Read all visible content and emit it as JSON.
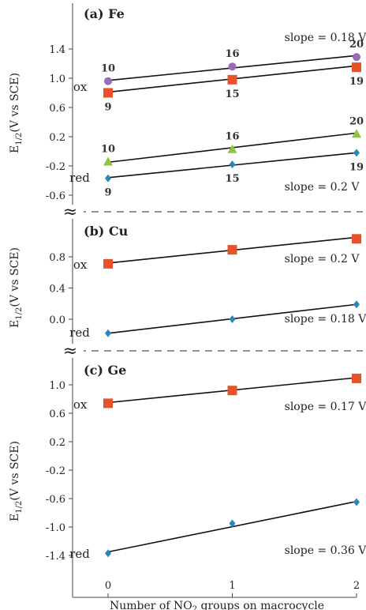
{
  "chart_data": {
    "type": "scatter",
    "xlabel_prefix": "Number of NO",
    "xlabel_sub": "2",
    "xlabel_suffix": " groups on macrocycle",
    "x_ticks": [
      "0",
      "1",
      "2"
    ],
    "xlim": [
      -0.45,
      2.2
    ],
    "colors": {
      "square": "#e8522a",
      "diamond": "#2e86b8",
      "circle": "#9b6bb4",
      "triangle": "#8cc63e",
      "fit": "#111111"
    },
    "panels": [
      {
        "label": "(a) Fe",
        "ylabel_prefix": "E",
        "ylabel_sub": "1/2",
        "ylabel_suffix": "(V vs SCE)",
        "ylim": [
          -0.8,
          1.6
        ],
        "y_ticks": [
          -0.6,
          -0.2,
          0.2,
          0.6,
          1.0,
          1.4
        ],
        "y_tick_labels": [
          "-0.6",
          "-0.2",
          "0.2",
          "0.6",
          "1.0",
          "1.4"
        ],
        "series": [
          {
            "marker": "circle",
            "x": [
              0,
              1,
              2
            ],
            "y": [
              0.96,
              1.16,
              1.29
            ],
            "fit": [
              0.97,
              1.31
            ],
            "labels": [
              "10",
              "16",
              "20"
            ],
            "label_pos": "above"
          },
          {
            "marker": "square",
            "x": [
              0,
              1,
              2
            ],
            "y": [
              0.8,
              0.98,
              1.15
            ],
            "fit": [
              0.81,
              1.17
            ],
            "labels": [
              "9",
              "15",
              "19"
            ],
            "label_pos": "below"
          },
          {
            "marker": "triangle",
            "x": [
              0,
              1,
              2
            ],
            "y": [
              -0.14,
              0.03,
              0.24
            ],
            "fit": [
              -0.15,
              0.25
            ],
            "labels": [
              "10",
              "16",
              "20"
            ],
            "label_pos": "above"
          },
          {
            "marker": "diamond",
            "x": [
              0,
              1,
              2
            ],
            "y": [
              -0.37,
              -0.18,
              -0.02
            ],
            "fit": [
              -0.36,
              -0.02
            ],
            "labels": [
              "9",
              "15",
              "19"
            ],
            "label_pos": "below"
          }
        ],
        "annotations": [
          {
            "text": "slope = 0.18 V",
            "x": 1.42,
            "y": 1.56
          },
          {
            "text": "slope = 0.2 V",
            "x": 1.42,
            "y": -0.48
          },
          {
            "text": "ox",
            "x": -0.28,
            "y": 0.88
          },
          {
            "text": "red",
            "x": -0.31,
            "y": -0.36
          }
        ]
      },
      {
        "label": "(b) Cu",
        "ylabel_prefix": "E",
        "ylabel_sub": "1/2",
        "ylabel_suffix": "(V vs SCE)",
        "ylim": [
          -0.22,
          1.05
        ],
        "y_ticks": [
          0.0,
          0.4,
          0.8
        ],
        "y_tick_labels": [
          "0.0",
          "0.4",
          "0.8"
        ],
        "series": [
          {
            "marker": "square",
            "x": [
              0,
              1,
              2
            ],
            "y": [
              0.71,
              0.89,
              1.03
            ],
            "fit": [
              0.72,
              1.05
            ],
            "labels": [
              "",
              "",
              ""
            ],
            "label_pos": "none"
          },
          {
            "marker": "diamond",
            "x": [
              0,
              1,
              2
            ],
            "y": [
              -0.18,
              0.0,
              0.19
            ],
            "fit": [
              -0.18,
              0.19
            ],
            "labels": [
              "",
              "",
              ""
            ],
            "label_pos": "none"
          }
        ],
        "annotations": [
          {
            "text": "slope = 0.2 V",
            "x": 1.42,
            "y": 0.78
          },
          {
            "text": "slope = 0.18 V",
            "x": 1.42,
            "y": 0.01
          },
          {
            "text": "ox",
            "x": -0.28,
            "y": 0.7
          },
          {
            "text": "red",
            "x": -0.31,
            "y": -0.17
          }
        ]
      },
      {
        "label": "(c) Ge",
        "ylabel_prefix": "E",
        "ylabel_sub": "1/2",
        "ylabel_suffix": "(V vs SCE)",
        "ylim": [
          -1.5,
          1.3
        ],
        "y_ticks": [
          -1.4,
          -1.0,
          -0.6,
          -0.2,
          0.2,
          0.6,
          1.0
        ],
        "y_tick_labels": [
          "-1.4",
          "-1.0",
          "-0.6",
          "-0.2",
          "0.2",
          "0.6",
          "1.0"
        ],
        "series": [
          {
            "marker": "square",
            "x": [
              0,
              1,
              2
            ],
            "y": [
              0.74,
              0.92,
              1.09
            ],
            "fit": [
              0.75,
              1.1
            ],
            "labels": [
              "",
              "",
              ""
            ],
            "label_pos": "none"
          },
          {
            "marker": "diamond",
            "x": [
              0,
              1,
              2
            ],
            "y": [
              -1.37,
              -0.95,
              -0.65
            ],
            "fit": [
              -1.35,
              -0.64
            ],
            "labels": [
              "",
              "",
              ""
            ],
            "label_pos": "none"
          }
        ],
        "annotations": [
          {
            "text": "slope = 0.17 V",
            "x": 1.42,
            "y": 0.7
          },
          {
            "text": "slope = 0.36 V",
            "x": 1.42,
            "y": -1.32
          },
          {
            "text": "ox",
            "x": -0.28,
            "y": 0.72
          },
          {
            "text": "red",
            "x": -0.31,
            "y": -1.38
          }
        ]
      }
    ],
    "break_symbol": "≈"
  }
}
